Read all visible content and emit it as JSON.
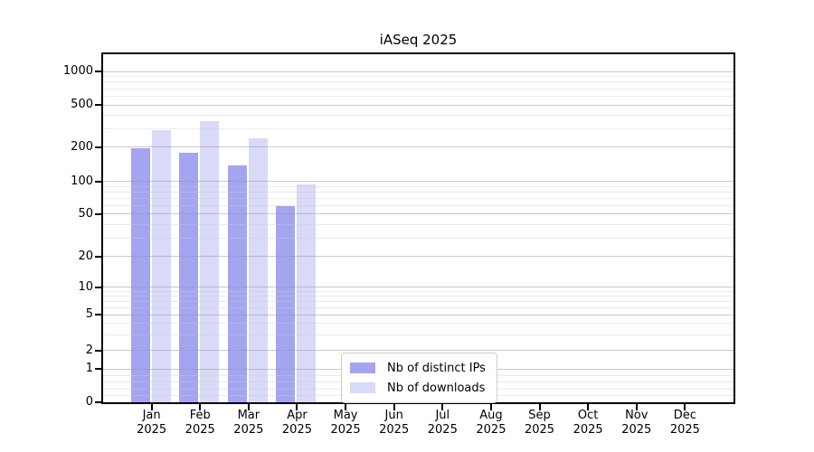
{
  "chart_data": {
    "type": "bar",
    "title": "iASeq 2025",
    "yscale": "symlog",
    "grid": "horizontal, major and minor, drawn over bars",
    "legend_position": "lower center",
    "categories": [
      "Jan",
      "Feb",
      "Mar",
      "Apr",
      "May",
      "Jun",
      "Jul",
      "Aug",
      "Sep",
      "Oct",
      "Nov",
      "Dec"
    ],
    "x_sublabel": "2025",
    "yticks": [
      0,
      1,
      2,
      5,
      10,
      20,
      50,
      100,
      200,
      500,
      1000
    ],
    "yticks_minor": [
      0.2,
      0.4,
      0.6,
      0.8,
      3,
      4,
      6,
      7,
      8,
      9,
      30,
      40,
      60,
      70,
      80,
      90,
      300,
      400,
      600,
      700,
      800,
      900
    ],
    "ylim": [
      0,
      1400
    ],
    "series": [
      {
        "name": "Nb of distinct IPs",
        "color": "#a4a4f1",
        "values": [
          195,
          180,
          140,
          60,
          null,
          null,
          null,
          null,
          null,
          null,
          null,
          null
        ]
      },
      {
        "name": "Nb of downloads",
        "color": "#d9d9f8",
        "values": [
          290,
          350,
          245,
          94,
          null,
          null,
          null,
          null,
          null,
          null,
          null,
          null
        ]
      }
    ]
  }
}
